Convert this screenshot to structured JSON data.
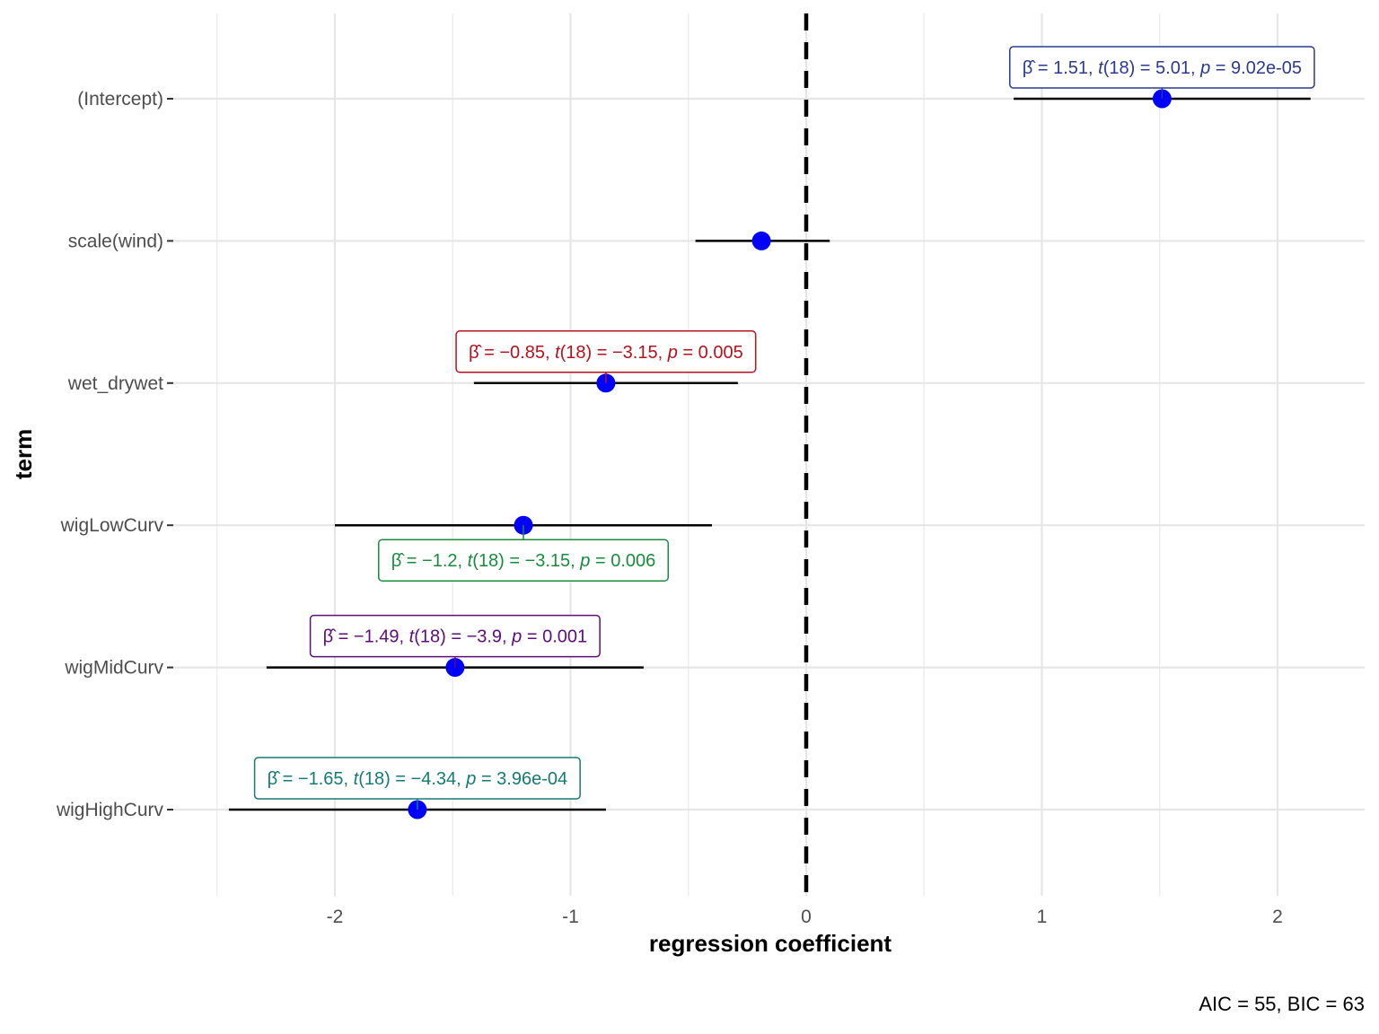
{
  "chart_data": {
    "type": "scatter",
    "subtype": "coefficient-plot",
    "xlabel": "regression coefficient",
    "ylabel": "term",
    "caption": "AIC = 55, BIC = 63",
    "xlim": [
      -2.5,
      2.35
    ],
    "x_ticks": [
      "-2",
      "-1",
      "0",
      "1",
      "2"
    ],
    "x_tick_values": [
      -2,
      -1,
      0,
      1,
      2
    ],
    "reference_line": 0,
    "grid": true,
    "point_color": "#0000ff",
    "terms": [
      {
        "term": "(Intercept)",
        "estimate": 1.51,
        "conf_low": 0.88,
        "conf_high": 2.14,
        "label": {
          "beta": "1.51",
          "df": "18",
          "t": "5.01",
          "p": "9.02e-05"
        },
        "label_side": "above",
        "label_color": "#2b3a8f"
      },
      {
        "term": "scale(wind)",
        "estimate": -0.19,
        "conf_low": -0.47,
        "conf_high": 0.1,
        "label": null
      },
      {
        "term": "wet_drywet",
        "estimate": -0.85,
        "conf_low": -1.41,
        "conf_high": -0.29,
        "label": {
          "beta": "−0.85",
          "df": "18",
          "t": "−3.15",
          "p": "0.005"
        },
        "label_side": "above",
        "label_color": "#b5121b"
      },
      {
        "term": "wigLowCurv",
        "estimate": -1.2,
        "conf_low": -2.0,
        "conf_high": -0.4,
        "label": {
          "beta": "−1.2",
          "df": "18",
          "t": "−3.15",
          "p": "0.006"
        },
        "label_side": "below",
        "label_color": "#1a8a3c"
      },
      {
        "term": "wigMidCurv",
        "estimate": -1.49,
        "conf_low": -2.29,
        "conf_high": -0.69,
        "label": {
          "beta": "−1.49",
          "df": "18",
          "t": "−3.9",
          "p": "0.001"
        },
        "label_side": "above",
        "label_color": "#5c0f7a"
      },
      {
        "term": "wigHighCurv",
        "estimate": -1.65,
        "conf_low": -2.45,
        "conf_high": -0.85,
        "label": {
          "beta": "−1.65",
          "df": "18",
          "t": "−4.34",
          "p": "3.96e-04"
        },
        "label_side": "above",
        "label_color": "#157a73"
      }
    ]
  }
}
